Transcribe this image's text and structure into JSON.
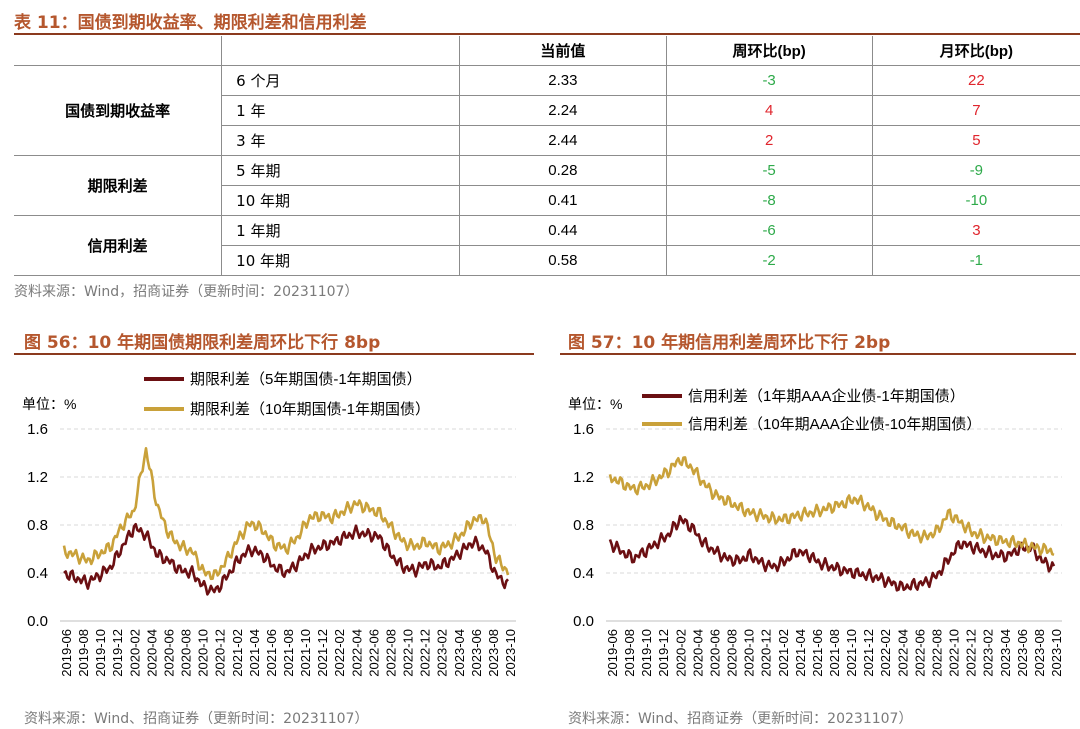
{
  "table": {
    "title": "表 11：国债到期收益率、期限利差和信用利差",
    "headers": [
      "",
      "",
      "当前值",
      "周环比(bp)",
      "月环比(bp)"
    ],
    "groups": [
      {
        "name": "国债到期收益率",
        "rows": [
          {
            "term": "6 个月",
            "value": "2.33",
            "wow": "-3",
            "mom": "22"
          },
          {
            "term": "1 年",
            "value": "2.24",
            "wow": "4",
            "mom": "7"
          },
          {
            "term": "3 年",
            "value": "2.44",
            "wow": "2",
            "mom": "5"
          }
        ]
      },
      {
        "name": "期限利差",
        "rows": [
          {
            "term": "5 年期",
            "value": "0.28",
            "wow": "-5",
            "mom": "-9"
          },
          {
            "term": "10 年期",
            "value": "0.41",
            "wow": "-8",
            "mom": "-10"
          }
        ]
      },
      {
        "name": "信用利差",
        "rows": [
          {
            "term": "1 年期",
            "value": "0.44",
            "wow": "-6",
            "mom": "3"
          },
          {
            "term": "10 年期",
            "value": "0.58",
            "wow": "-2",
            "mom": "-1"
          }
        ]
      }
    ],
    "source": "资料来源：Wind，招商证券（更新时间：20231107）"
  },
  "colors": {
    "caption": "#b5572e",
    "positive": "#e0252d",
    "negative": "#2eaa4a",
    "series_dark": "#6b0f12",
    "series_gold": "#c9a13a"
  },
  "chart_data": [
    {
      "type": "line",
      "title": "图 56：10 年期国债期限利差周环比下行 8bp",
      "unit_label": "单位：%",
      "x_ticks": [
        "2019-06",
        "2019-08",
        "2019-10",
        "2019-12",
        "2020-02",
        "2020-04",
        "2020-06",
        "2020-08",
        "2020-10",
        "2020-12",
        "2021-02",
        "2021-04",
        "2021-06",
        "2021-08",
        "2021-10",
        "2021-12",
        "2022-02",
        "2022-04",
        "2022-06",
        "2022-08",
        "2022-10",
        "2022-12",
        "2023-02",
        "2023-04",
        "2023-06",
        "2023-08",
        "2023-10"
      ],
      "ylim": [
        0,
        1.6
      ],
      "y_ticks": [
        "0.0",
        "0.4",
        "0.8",
        "1.2",
        "1.6"
      ],
      "grid": true,
      "legend_position": "top",
      "series": [
        {
          "name": "期限利差（5年期国债-1年期国债）",
          "color": "#6b0f12",
          "values": [
            0.4,
            0.36,
            0.32,
            0.38,
            0.45,
            0.62,
            0.78,
            0.72,
            0.55,
            0.5,
            0.42,
            0.4,
            0.28,
            0.25,
            0.38,
            0.52,
            0.6,
            0.55,
            0.45,
            0.4,
            0.48,
            0.58,
            0.62,
            0.65,
            0.7,
            0.74,
            0.72,
            0.7,
            0.55,
            0.45,
            0.42,
            0.48,
            0.45,
            0.5,
            0.58,
            0.66,
            0.6,
            0.38,
            0.3
          ]
        },
        {
          "name": "期限利差（10年期国债-1年期国债）",
          "color": "#c9a13a",
          "values": [
            0.58,
            0.55,
            0.5,
            0.56,
            0.62,
            0.8,
            0.92,
            1.43,
            0.95,
            0.72,
            0.62,
            0.58,
            0.4,
            0.38,
            0.52,
            0.7,
            0.82,
            0.76,
            0.64,
            0.6,
            0.7,
            0.86,
            0.88,
            0.86,
            0.92,
            0.98,
            0.94,
            0.9,
            0.78,
            0.66,
            0.62,
            0.66,
            0.6,
            0.64,
            0.72,
            0.84,
            0.86,
            0.52,
            0.41
          ]
        }
      ]
    },
    {
      "type": "line",
      "title": "图 57：10 年期信用利差周环比下行 2bp",
      "unit_label": "单位：%",
      "x_ticks": [
        "2019-06",
        "2019-08",
        "2019-10",
        "2019-12",
        "2020-02",
        "2020-04",
        "2020-06",
        "2020-08",
        "2020-10",
        "2020-12",
        "2021-02",
        "2021-04",
        "2021-06",
        "2021-08",
        "2021-10",
        "2021-12",
        "2022-02",
        "2022-04",
        "2022-06",
        "2022-08",
        "2022-10",
        "2022-12",
        "2023-02",
        "2023-04",
        "2023-06",
        "2023-08",
        "2023-10"
      ],
      "ylim": [
        0,
        1.6
      ],
      "y_ticks": [
        "0.0",
        "0.4",
        "0.8",
        "1.2",
        "1.6"
      ],
      "grid": true,
      "legend_position": "top",
      "series": [
        {
          "name": "信用利差（1年期AAA企业债-1年期国债）",
          "color": "#6b0f12",
          "values": [
            0.65,
            0.58,
            0.52,
            0.58,
            0.65,
            0.72,
            0.85,
            0.78,
            0.65,
            0.58,
            0.52,
            0.5,
            0.55,
            0.48,
            0.45,
            0.5,
            0.58,
            0.55,
            0.48,
            0.45,
            0.42,
            0.4,
            0.38,
            0.36,
            0.32,
            0.28,
            0.3,
            0.32,
            0.38,
            0.52,
            0.65,
            0.62,
            0.58,
            0.55,
            0.54,
            0.6,
            0.62,
            0.5,
            0.44
          ]
        },
        {
          "name": "信用利差（10年期AAA企业债-10年期国债）",
          "color": "#c9a13a",
          "values": [
            1.2,
            1.15,
            1.1,
            1.12,
            1.18,
            1.25,
            1.35,
            1.28,
            1.15,
            1.05,
            1.0,
            0.95,
            0.9,
            0.88,
            0.85,
            0.85,
            0.88,
            0.9,
            0.92,
            0.95,
            0.98,
            1.02,
            0.96,
            0.88,
            0.82,
            0.78,
            0.72,
            0.7,
            0.75,
            0.9,
            0.82,
            0.74,
            0.7,
            0.68,
            0.66,
            0.65,
            0.62,
            0.6,
            0.58
          ]
        }
      ]
    }
  ],
  "sources": [
    "资料来源：Wind、招商证券（更新时间：20231107）",
    "资料来源：Wind、招商证券（更新时间：20231107）"
  ]
}
